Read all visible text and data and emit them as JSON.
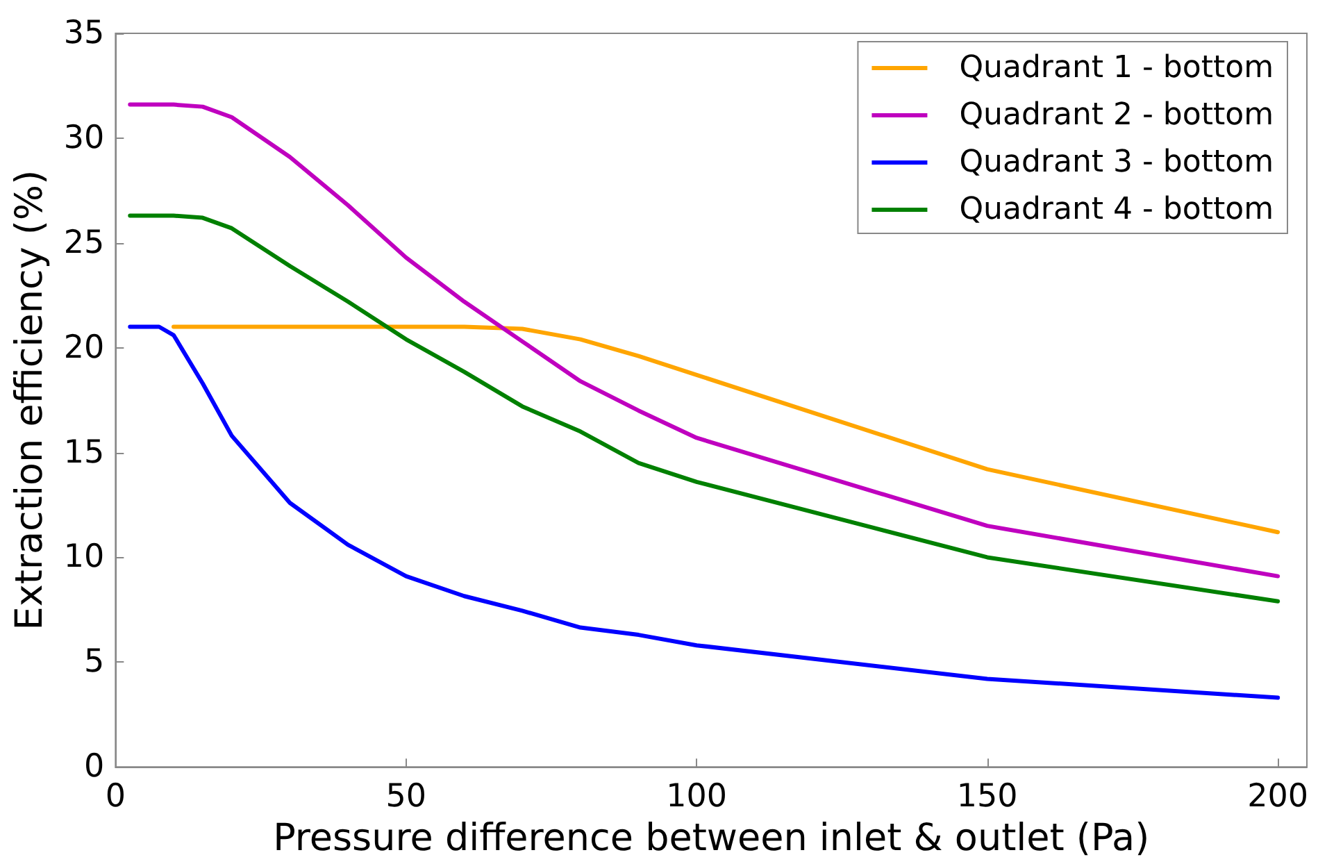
{
  "chart_data": {
    "type": "line",
    "xlabel": "Pressure difference between inlet & outlet (Pa)",
    "ylabel": "Extraction efficiency (%)",
    "xlim": [
      0,
      205
    ],
    "xticks": [
      0,
      50,
      100,
      150,
      200
    ],
    "ylim": [
      0,
      35
    ],
    "yticks": [
      0,
      5,
      10,
      15,
      20,
      25,
      30,
      35
    ],
    "grid": false,
    "legend": "top right",
    "marker": "none",
    "line_style": "solid",
    "series": [
      {
        "name": "Quadrant 1 - bottom",
        "color": "#ffa500",
        "x": [
          10,
          15,
          20,
          30,
          40,
          50,
          60,
          70,
          80,
          90,
          100,
          150,
          200
        ],
        "values": [
          21.0,
          21.0,
          21.0,
          21.0,
          21.0,
          21.0,
          21.0,
          20.9,
          20.4,
          19.6,
          18.7,
          14.2,
          11.2
        ]
      },
      {
        "name": "Quadrant 2 - bottom",
        "color": "#bf00bf",
        "x": [
          2.5,
          10,
          15,
          20,
          30,
          40,
          50,
          60,
          70,
          80,
          90,
          100,
          150,
          200
        ],
        "values": [
          31.6,
          31.6,
          31.5,
          31.0,
          29.1,
          26.8,
          24.3,
          22.2,
          20.3,
          18.4,
          17.0,
          15.7,
          11.5,
          9.1
        ]
      },
      {
        "name": "Quadrant 3 - bottom",
        "color": "#0000ff",
        "x": [
          2.5,
          7.5,
          10,
          15,
          20,
          30,
          40,
          50,
          60,
          70,
          80,
          90,
          100,
          150,
          200
        ],
        "values": [
          21.0,
          21.0,
          20.6,
          18.3,
          15.8,
          12.6,
          10.6,
          9.1,
          8.15,
          7.45,
          6.65,
          6.3,
          5.8,
          4.2,
          3.3
        ]
      },
      {
        "name": "Quadrant 4 - bottom",
        "color": "#008000",
        "x": [
          2.5,
          10,
          15,
          20,
          30,
          40,
          50,
          60,
          70,
          80,
          90,
          100,
          150,
          200
        ],
        "values": [
          26.3,
          26.3,
          26.2,
          25.7,
          23.9,
          22.2,
          20.4,
          18.85,
          17.2,
          16.0,
          14.5,
          13.6,
          10.0,
          7.9
        ]
      }
    ]
  }
}
